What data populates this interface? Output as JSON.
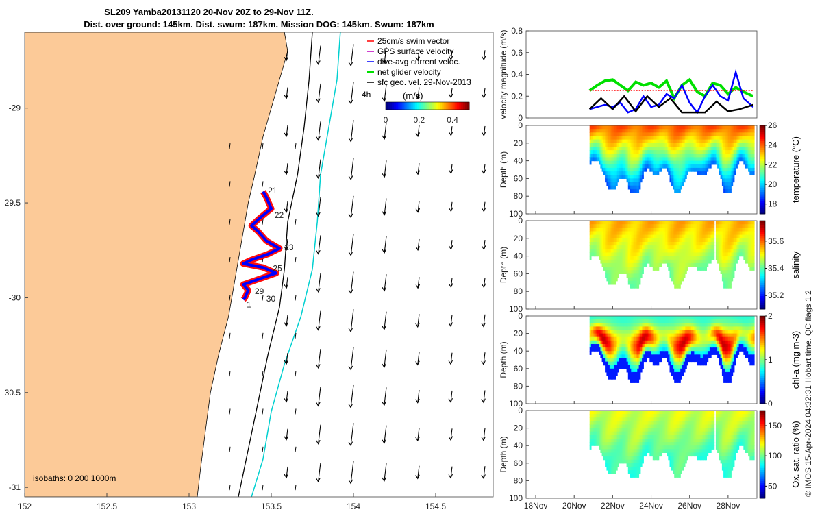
{
  "title": {
    "line1": "SL209 Yamba20131120 20-Nov 20Z to 29-Nov 11Z.",
    "line2": "Dist. over ground: 145km. Dist. swum: 187km. Mission DOG: 145km. Swum: 187km"
  },
  "credit": "© IMOS 15-Apr-2024 04:32:31 Hobart time. QC flags 1  2",
  "colors": {
    "land": "#FCCA98",
    "track": "#FF0000",
    "dive": "#0000FF",
    "net": "#00E000",
    "sfc": "#000000",
    "isobath200": "#000000",
    "isobath1000": "#00D0D0"
  },
  "chart_data": [
    {
      "type": "map",
      "name": "track-map",
      "xlim": [
        152,
        154.85
      ],
      "ylim": [
        -31.05,
        -28.6
      ],
      "x_ticks": [
        152,
        152.5,
        153,
        153.5,
        154,
        154.5
      ],
      "x_tick_labels": [
        "152",
        "152.5",
        "153",
        "153.5",
        "154",
        "154.5"
      ],
      "y_ticks": [
        -29,
        -29.5,
        -30,
        -30.5,
        -31
      ],
      "y_tick_labels": [
        "-29",
        "29.5",
        "-30",
        "30.5",
        "-31"
      ],
      "legend": {
        "placement": "top-right",
        "items": [
          {
            "label": "25cm/s swim vector",
            "color": "#FF0000"
          },
          {
            "label": "GPS surface velocity",
            "color": "#C000C0"
          },
          {
            "label": "dive-avg current veloc.",
            "color": "#0000FF"
          },
          {
            "label": "net glider velocity",
            "color": "#00E000"
          },
          {
            "label": "sfc geo. vel. 29-Nov-2013",
            "color": "#000000"
          }
        ],
        "extra": "4h"
      },
      "colorbar": {
        "label": "(m/s)",
        "ticks": [
          0,
          0.2,
          0.4
        ],
        "tick_labels": [
          "0",
          "0.2",
          "0.4"
        ],
        "range": [
          0,
          0.5
        ]
      },
      "isobaths_label": "isobaths: 0   200  1000m",
      "day_labels": [
        {
          "text": "21",
          "lon": 153.48,
          "lat": -29.45
        },
        {
          "text": "22",
          "lon": 153.52,
          "lat": -29.58
        },
        {
          "text": "23",
          "lon": 153.58,
          "lat": -29.75
        },
        {
          "text": "25",
          "lon": 153.51,
          "lat": -29.86
        },
        {
          "text": "29",
          "lon": 153.4,
          "lat": -29.98
        },
        {
          "text": "30",
          "lon": 153.47,
          "lat": -30.02
        },
        {
          "text": "1",
          "lon": 153.35,
          "lat": -30.05
        }
      ],
      "track": [
        [
          153.45,
          -29.44
        ],
        [
          153.47,
          -29.47
        ],
        [
          153.5,
          -29.53
        ],
        [
          153.43,
          -29.58
        ],
        [
          153.38,
          -29.62
        ],
        [
          153.42,
          -29.65
        ],
        [
          153.47,
          -29.7
        ],
        [
          153.55,
          -29.74
        ],
        [
          153.48,
          -29.77
        ],
        [
          153.38,
          -29.8
        ],
        [
          153.33,
          -29.82
        ],
        [
          153.45,
          -29.84
        ],
        [
          153.53,
          -29.87
        ],
        [
          153.43,
          -29.9
        ],
        [
          153.33,
          -29.93
        ],
        [
          153.36,
          -29.96
        ],
        [
          153.34,
          -30.0
        ],
        [
          153.33,
          -30.01
        ]
      ],
      "isobath200": [
        [
          153.75,
          -28.6
        ],
        [
          153.73,
          -28.85
        ],
        [
          153.7,
          -29.1
        ],
        [
          153.66,
          -29.35
        ],
        [
          153.6,
          -29.6
        ],
        [
          153.58,
          -29.85
        ],
        [
          153.55,
          -30.05
        ],
        [
          153.48,
          -30.3
        ],
        [
          153.42,
          -30.55
        ],
        [
          153.36,
          -30.8
        ],
        [
          153.3,
          -31.05
        ]
      ],
      "isobath1000": [
        [
          153.92,
          -28.6
        ],
        [
          153.9,
          -28.85
        ],
        [
          153.85,
          -29.1
        ],
        [
          153.8,
          -29.35
        ],
        [
          153.78,
          -29.6
        ],
        [
          153.75,
          -29.85
        ],
        [
          153.68,
          -30.1
        ],
        [
          153.58,
          -30.35
        ],
        [
          153.5,
          -30.6
        ],
        [
          153.45,
          -30.85
        ],
        [
          153.38,
          -31.05
        ]
      ]
    },
    {
      "type": "line",
      "name": "velocity-magnitude",
      "ylabel": "velocity magnitude (m/s)",
      "ylim": [
        0,
        0.8
      ],
      "y_ticks": [
        0,
        0.2,
        0.4,
        0.6,
        0.8
      ],
      "y_tick_labels": [
        "0",
        "0.2",
        "0.4",
        "0.6",
        "0.8"
      ],
      "series": [
        {
          "color": "#00E000",
          "x": [
            20.8,
            21.2,
            21.6,
            22,
            22.4,
            22.8,
            23.2,
            23.6,
            24,
            24.4,
            24.8,
            25.2,
            25.6,
            26,
            26.4,
            26.8,
            27.2,
            27.6,
            28,
            28.4,
            28.8,
            29.3
          ],
          "values": [
            0.25,
            0.3,
            0.34,
            0.35,
            0.3,
            0.25,
            0.33,
            0.3,
            0.32,
            0.28,
            0.34,
            0.18,
            0.3,
            0.35,
            0.24,
            0.2,
            0.32,
            0.3,
            0.22,
            0.28,
            0.24,
            0.2
          ]
        },
        {
          "color": "#0000FF",
          "x": [
            20.8,
            21.2,
            21.6,
            22,
            22.4,
            22.8,
            23.2,
            23.6,
            24,
            24.4,
            24.8,
            25.2,
            25.6,
            26,
            26.4,
            26.8,
            27.2,
            27.6,
            28,
            28.4,
            28.8,
            29.3
          ],
          "values": [
            0.08,
            0.1,
            0.12,
            0.1,
            0.14,
            0.05,
            0.08,
            0.2,
            0.1,
            0.12,
            0.22,
            0.18,
            0.3,
            0.14,
            0.05,
            0.2,
            0.3,
            0.2,
            0.16,
            0.42,
            0.18,
            0.1
          ]
        },
        {
          "color": "#000000",
          "x": [
            20.8,
            21.4,
            22,
            22.6,
            23.2,
            23.8,
            24.4,
            25,
            25.6,
            26.2,
            26.8,
            27.4,
            28,
            28.6,
            29.3
          ],
          "values": [
            0.08,
            0.18,
            0.08,
            0.2,
            0.06,
            0.2,
            0.1,
            0.18,
            0.05,
            0.05,
            0.05,
            0.15,
            0.06,
            0.08,
            0.12
          ]
        },
        {
          "color": "#FF0000",
          "x": [
            20.8,
            29.3
          ],
          "values": [
            0.25,
            0.25
          ]
        }
      ]
    },
    {
      "type": "heatmap",
      "name": "temperature",
      "ylabel": "Depth (m)",
      "colorbar_label": "temperature (°C)",
      "clim": [
        17,
        26
      ],
      "cb_ticks": [
        18,
        20,
        22,
        24,
        26
      ],
      "cb_tick_labels": [
        "18",
        "20",
        "22",
        "24",
        "26"
      ],
      "ylim": [
        0,
        100
      ],
      "y_ticks": [
        0,
        20,
        40,
        60,
        80,
        100
      ],
      "y_tick_labels": [
        "0",
        "20",
        "40",
        "60",
        "80",
        "100"
      ],
      "surface": 24,
      "bottom": 19
    },
    {
      "type": "heatmap",
      "name": "salinity",
      "ylabel": "Depth (m)",
      "colorbar_label": "salinity",
      "clim": [
        35.1,
        35.75
      ],
      "cb_ticks": [
        35.2,
        35.4,
        35.6
      ],
      "cb_tick_labels": [
        "35.2",
        "35.4",
        "35.6"
      ],
      "ylim": [
        0,
        100
      ],
      "y_ticks": [
        0,
        20,
        40,
        60,
        80,
        100
      ],
      "y_tick_labels": [
        "0",
        "20",
        "40",
        "60",
        "80",
        "100"
      ],
      "surface": 35.55,
      "bottom": 35.42
    },
    {
      "type": "heatmap",
      "name": "chl-a",
      "ylabel": "Depth (m)",
      "colorbar_label": "chl-a (mg m-3)",
      "clim": [
        0,
        2
      ],
      "cb_ticks": [
        0,
        1,
        2
      ],
      "cb_tick_labels": [
        "0",
        "1",
        "2"
      ],
      "ylim": [
        0,
        100
      ],
      "y_ticks": [
        0,
        20,
        40,
        60,
        80,
        100
      ],
      "y_tick_labels": [
        "0",
        "20",
        "40",
        "60",
        "80",
        "100"
      ],
      "surface": 0.8,
      "bottom": 0.5,
      "mid": 2
    },
    {
      "type": "heatmap",
      "name": "ox-sat",
      "ylabel": "Depth (m)",
      "colorbar_label": "Ox. sat. ratio (%)",
      "clim": [
        30,
        175
      ],
      "cb_ticks": [
        50,
        100,
        150
      ],
      "cb_tick_labels": [
        "50",
        "100",
        "150"
      ],
      "ylim": [
        0,
        100
      ],
      "y_ticks": [
        0,
        20,
        40,
        60,
        80,
        100
      ],
      "y_tick_labels": [
        "0",
        "20",
        "40",
        "60",
        "80",
        "100"
      ],
      "surface": 115,
      "bottom": 92
    }
  ],
  "time_axis": {
    "xlim": [
      17.5,
      29.5
    ],
    "ticks": [
      18,
      20,
      22,
      24,
      26,
      28
    ],
    "tick_labels": [
      "18Nov",
      "20Nov",
      "22Nov",
      "24Nov",
      "26Nov",
      "28Nov"
    ],
    "data_start": 20.8,
    "data_end": 29.3,
    "gap": [
      27.2,
      27.35
    ]
  }
}
